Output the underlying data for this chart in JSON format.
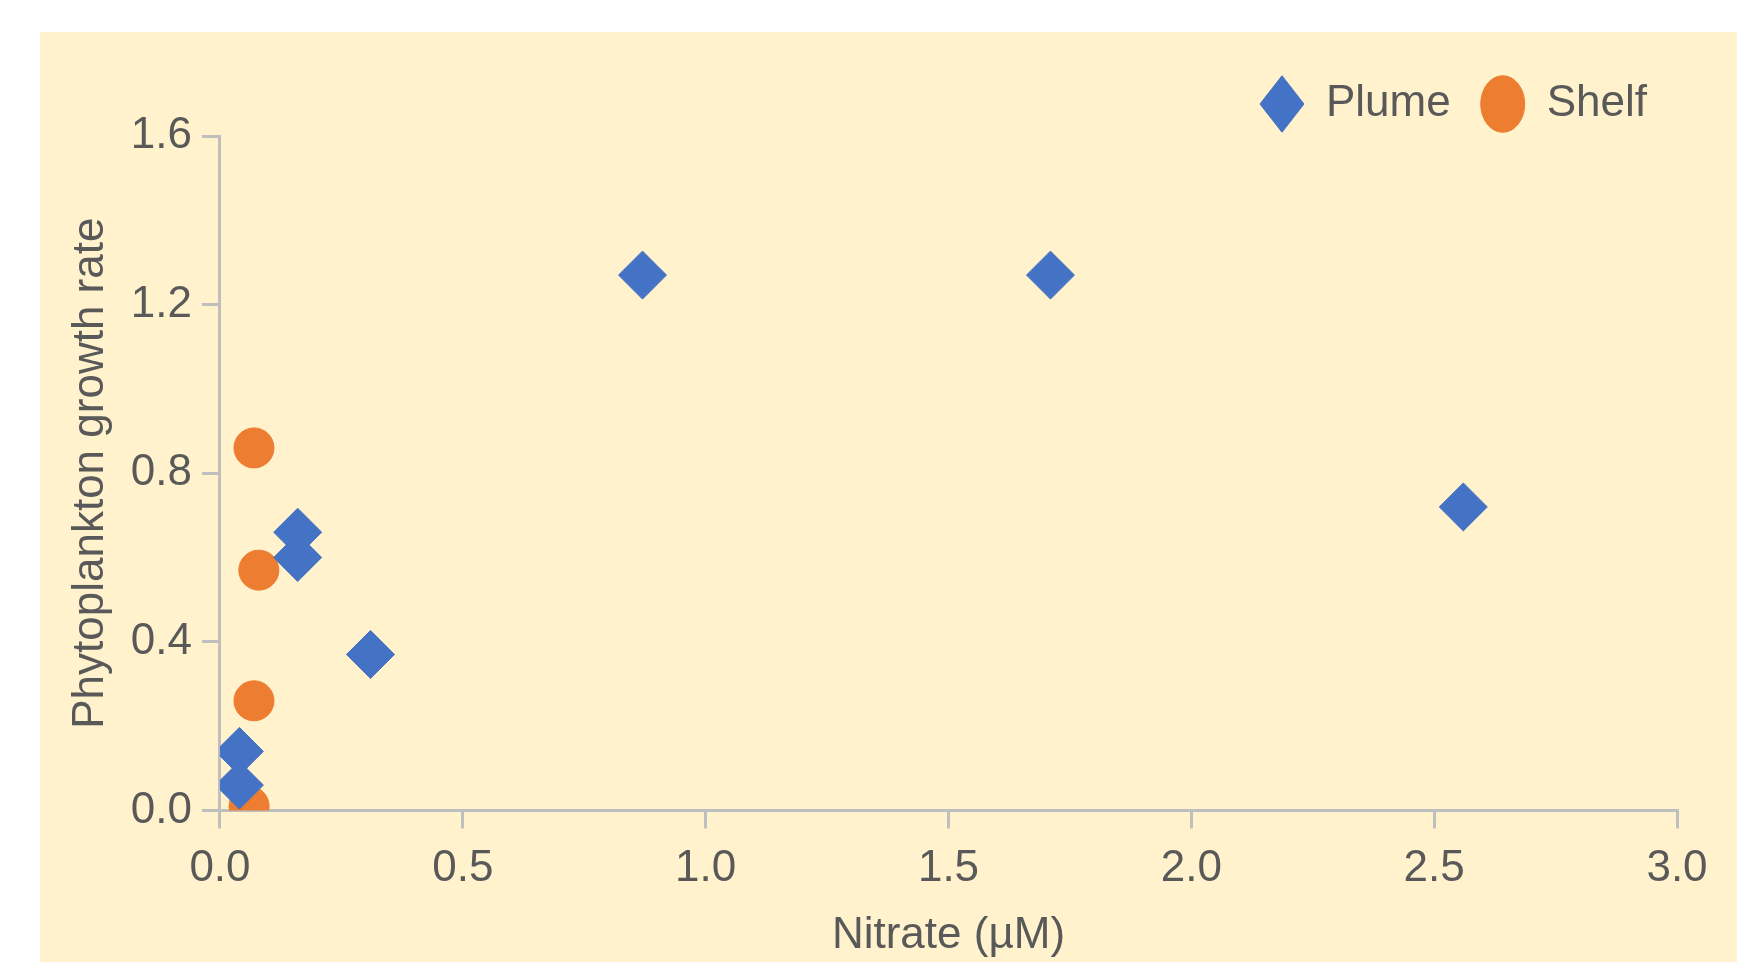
{
  "chart_data": {
    "type": "scatter",
    "xlabel": "Nitrate (µM)",
    "ylabel": "Phytoplankton growth rate",
    "xlim": [
      0,
      3
    ],
    "xticks": [
      {
        "value": 0,
        "label": "0.0"
      },
      {
        "value": 0.5,
        "label": "0.5"
      },
      {
        "value": 1,
        "label": "1.0"
      },
      {
        "value": 1.5,
        "label": "1.5"
      },
      {
        "value": 2,
        "label": "2.0"
      },
      {
        "value": 2.5,
        "label": "2.5"
      },
      {
        "value": 3,
        "label": "3.0"
      }
    ],
    "ylim": [
      0,
      1.6
    ],
    "yticks": [
      {
        "value": 0,
        "label": "0.0"
      },
      {
        "value": 0.4,
        "label": "0.4"
      },
      {
        "value": 0.8,
        "label": "0.8"
      },
      {
        "value": 1.2,
        "label": "1.2"
      },
      {
        "value": 1.6,
        "label": "1.6"
      }
    ],
    "grid": false,
    "legend": "top right",
    "series": [
      {
        "name": "Plume",
        "color": "#4472c4",
        "marker": "diamond",
        "x": [
          0.87,
          1.71,
          2.56,
          0.31,
          0.16,
          0.16,
          0.04,
          0.04
        ],
        "values": [
          1.27,
          1.27,
          0.72,
          0.37,
          0.66,
          0.6,
          0.14,
          0.06
        ]
      },
      {
        "name": "Shelf",
        "color": "#ed7d31",
        "marker": "circle",
        "x": [
          0.07,
          0.08,
          0.07,
          0.06
        ],
        "values": [
          0.86,
          0.57,
          0.26,
          0.01
        ]
      }
    ]
  }
}
